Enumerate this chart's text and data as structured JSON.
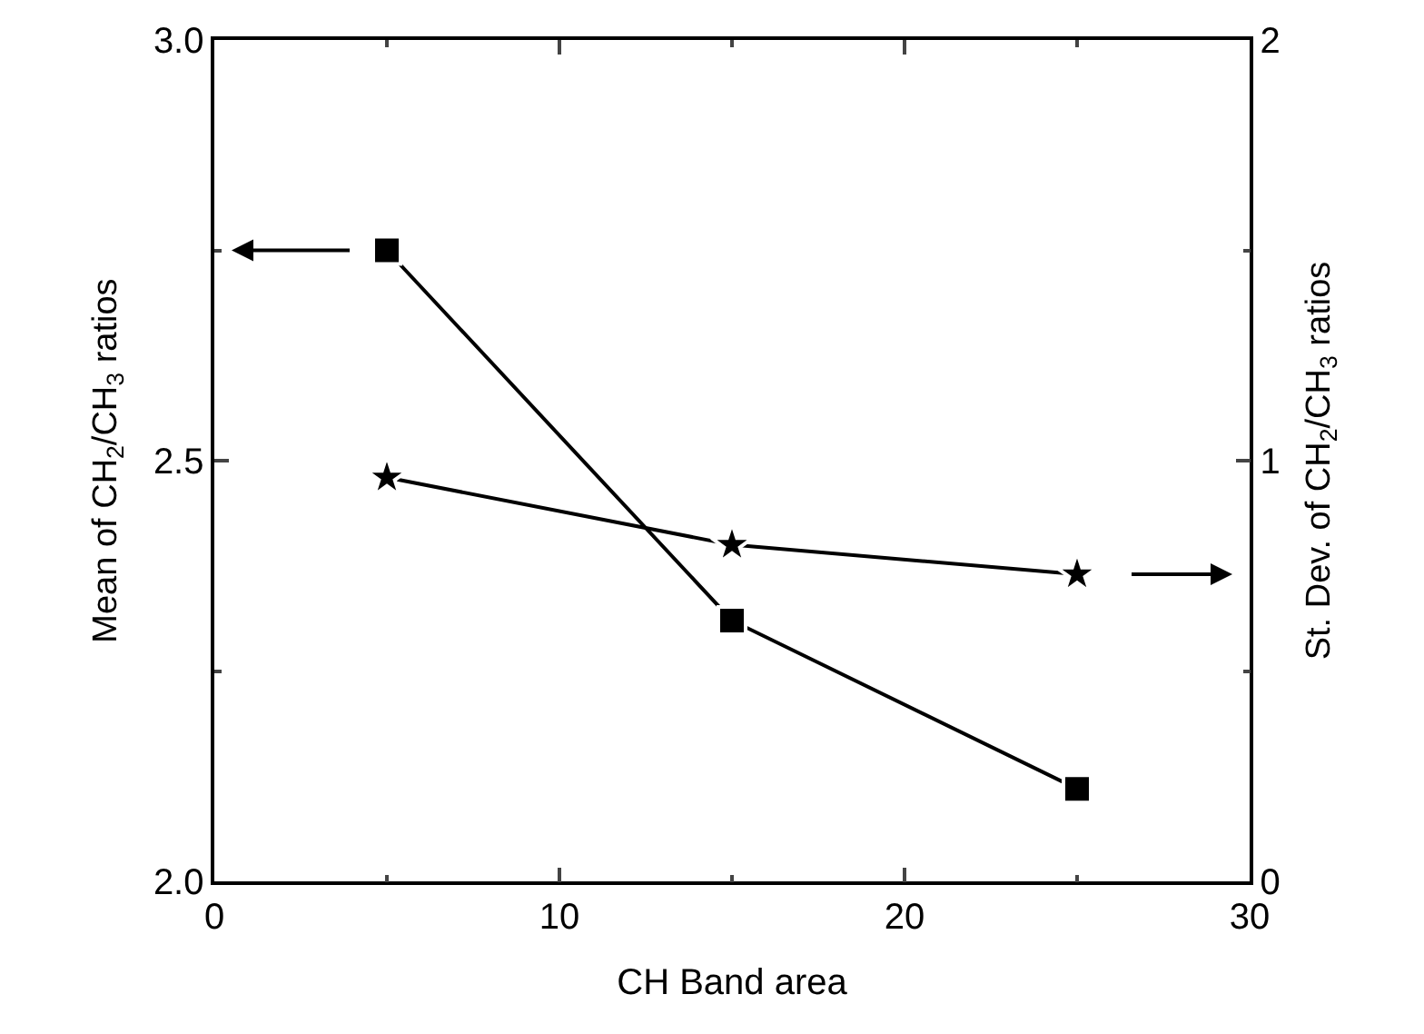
{
  "chart_data": {
    "type": "line",
    "xlabel": "CH Band area",
    "ylabel": "Mean of CH$_{2}$/CH$_{3}$ ratios",
    "y2label": "St. Dev. of CH$_{2}$/CH$_{3}$ ratios",
    "x": [
      5,
      15,
      25
    ],
    "series": [
      {
        "values": [
          2.75,
          2.31,
          2.11
        ],
        "color": "#000000",
        "marker": "square"
      },
      {
        "values": [
          0.96,
          0.8,
          0.73
        ],
        "color": "#000000",
        "marker": "star",
        "axis": "y2"
      }
    ],
    "xlim": [
      0,
      30
    ],
    "xticks": [
      0,
      10,
      20,
      30
    ],
    "ylim": [
      2.0,
      3.0
    ],
    "yticks": [
      {
        "value": 2.0,
        "label": "2.0"
      },
      {
        "value": 2.5,
        "label": "2.5"
      },
      {
        "value": 3.0,
        "label": "3.0"
      }
    ],
    "y2lim": [
      0,
      2
    ],
    "y2ticks": [
      0,
      1,
      2
    ],
    "line_style": "solid"
  }
}
